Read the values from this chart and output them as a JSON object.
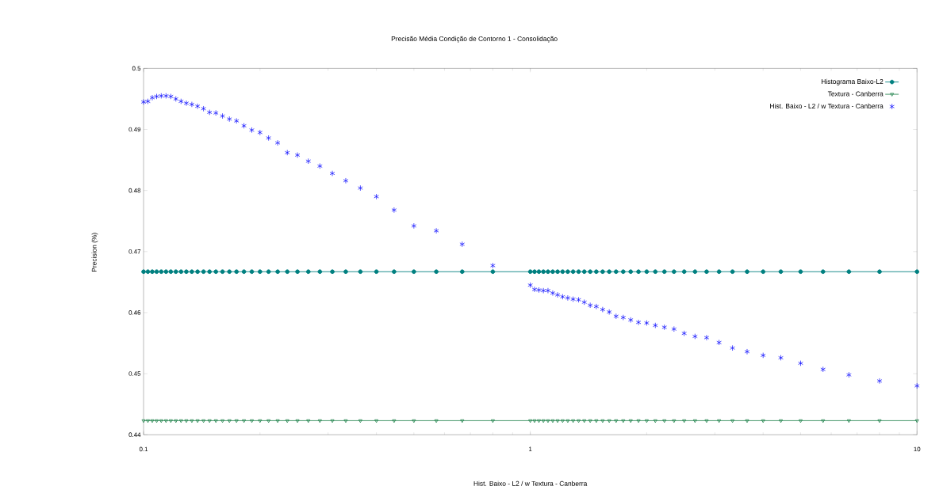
{
  "chart_data": {
    "type": "line",
    "title": "Precisão Média Condição de Contorno 1 - Consolidação",
    "xlabel": "Hist. Baixo - L2 / w Textura - Canberra",
    "ylabel": "Precision (%)",
    "log": "x",
    "legend": "top right",
    "xlim": [
      0.1,
      10
    ],
    "xticks": [
      0.1,
      1,
      10
    ],
    "ylim": [
      0.44,
      0.5
    ],
    "yticks": [
      0.44,
      0.45,
      0.46,
      0.47,
      0.48,
      0.49,
      0.5
    ],
    "x": [
      0.1,
      0.1026,
      0.1053,
      0.1081,
      0.1111,
      0.1143,
      0.1176,
      0.1212,
      0.125,
      0.129,
      0.1333,
      0.1379,
      0.1429,
      0.1481,
      0.1538,
      0.16,
      0.1667,
      0.1739,
      0.1818,
      0.1905,
      0.2,
      0.2105,
      0.2222,
      0.2353,
      0.25,
      0.2667,
      0.2857,
      0.3077,
      0.3333,
      0.3636,
      0.4,
      0.4444,
      0.5,
      0.5714,
      0.6667,
      0.8,
      1,
      1.0256,
      1.0526,
      1.0811,
      1.1111,
      1.1429,
      1.1765,
      1.2121,
      1.25,
      1.2903,
      1.3333,
      1.3793,
      1.4286,
      1.4815,
      1.5385,
      1.6,
      1.6667,
      1.7391,
      1.8182,
      1.9048,
      2,
      2.1053,
      2.2222,
      2.3529,
      2.5,
      2.6667,
      2.8571,
      3.0769,
      3.3333,
      3.6364,
      4,
      4.4444,
      5,
      5.7143,
      6.6667,
      8,
      10
    ],
    "series": [
      {
        "name": "Histograma Baixo-L2",
        "color": "#008080",
        "marker": "circle",
        "values": [
          0.4667,
          0.4667,
          0.4667,
          0.4667,
          0.4667,
          0.4667,
          0.4667,
          0.4667,
          0.4667,
          0.4667,
          0.4667,
          0.4667,
          0.4667,
          0.4667,
          0.4667,
          0.4667,
          0.4667,
          0.4667,
          0.4667,
          0.4667,
          0.4667,
          0.4667,
          0.4667,
          0.4667,
          0.4667,
          0.4667,
          0.4667,
          0.4667,
          0.4667,
          0.4667,
          0.4667,
          0.4667,
          0.4667,
          0.4667,
          0.4667,
          0.4667,
          0.4667,
          0.4667,
          0.4667,
          0.4667,
          0.4667,
          0.4667,
          0.4667,
          0.4667,
          0.4667,
          0.4667,
          0.4667,
          0.4667,
          0.4667,
          0.4667,
          0.4667,
          0.4667,
          0.4667,
          0.4667,
          0.4667,
          0.4667,
          0.4667,
          0.4667,
          0.4667,
          0.4667,
          0.4667,
          0.4667,
          0.4667,
          0.4667,
          0.4667,
          0.4667,
          0.4667,
          0.4667,
          0.4667,
          0.4667,
          0.4667,
          0.4667,
          0.4667
        ]
      },
      {
        "name": "Textura - Canberra",
        "color": "#2e8b57",
        "marker": "triangle",
        "values": [
          0.4423,
          0.4423,
          0.4423,
          0.4423,
          0.4423,
          0.4423,
          0.4423,
          0.4423,
          0.4423,
          0.4423,
          0.4423,
          0.4423,
          0.4423,
          0.4423,
          0.4423,
          0.4423,
          0.4423,
          0.4423,
          0.4423,
          0.4423,
          0.4423,
          0.4423,
          0.4423,
          0.4423,
          0.4423,
          0.4423,
          0.4423,
          0.4423,
          0.4423,
          0.4423,
          0.4423,
          0.4423,
          0.4423,
          0.4423,
          0.4423,
          0.4423,
          0.4423,
          0.4423,
          0.4423,
          0.4423,
          0.4423,
          0.4423,
          0.4423,
          0.4423,
          0.4423,
          0.4423,
          0.4423,
          0.4423,
          0.4423,
          0.4423,
          0.4423,
          0.4423,
          0.4423,
          0.4423,
          0.4423,
          0.4423,
          0.4423,
          0.4423,
          0.4423,
          0.4423,
          0.4423,
          0.4423,
          0.4423,
          0.4423,
          0.4423,
          0.4423,
          0.4423,
          0.4423,
          0.4423,
          0.4423,
          0.4423,
          0.4423,
          0.4423
        ]
      },
      {
        "name": "Hist. Baixo - L2 / w Textura - Canberra",
        "color": "#0000ff",
        "type": "scatter",
        "marker": "cross",
        "values": [
          0.4945,
          0.4946,
          0.4952,
          0.4954,
          0.4955,
          0.4955,
          0.4954,
          0.495,
          0.4946,
          0.4943,
          0.4941,
          0.4938,
          0.4934,
          0.4928,
          0.4927,
          0.4922,
          0.4917,
          0.4914,
          0.4906,
          0.4899,
          0.4895,
          0.4886,
          0.4878,
          0.4862,
          0.4858,
          0.4848,
          0.484,
          0.4828,
          0.4816,
          0.4804,
          0.479,
          0.4768,
          0.4742,
          0.4734,
          0.4712,
          0.4677,
          0.4645,
          0.4638,
          0.4637,
          0.4636,
          0.4636,
          0.4632,
          0.4629,
          0.4626,
          0.4624,
          0.4622,
          0.4621,
          0.4617,
          0.4612,
          0.461,
          0.4605,
          0.4601,
          0.4594,
          0.4592,
          0.4588,
          0.4584,
          0.4583,
          0.4579,
          0.4576,
          0.4573,
          0.4566,
          0.4561,
          0.4559,
          0.4551,
          0.4542,
          0.4536,
          0.453,
          0.4526,
          0.4517,
          0.4507,
          0.4498,
          0.4488,
          0.448
        ]
      }
    ]
  }
}
